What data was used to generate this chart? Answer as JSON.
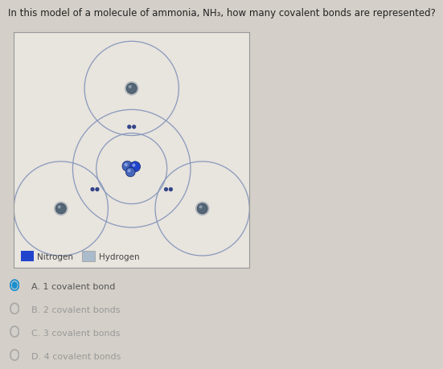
{
  "title": "In this model of a molecule of ammonia, NH₃, how many covalent bonds are represented?",
  "title_fontsize": 8.5,
  "bg_color": "#d4cfc8",
  "box_bg": "#e8e4de",
  "orbit_color": "#8899bb",
  "nitrogen_color_inner": "#2244cc",
  "nitrogen_color_outer": "#4466bb",
  "hydrogen_nucleus_color": "#556677",
  "legend_nitrogen": "#2244cc",
  "legend_hydrogen": "#aabbcc",
  "options": [
    {
      "label": "A. 1 covalent bond",
      "selected": true
    },
    {
      "label": "B. 2 covalent bonds",
      "selected": false
    },
    {
      "label": "C. 3 covalent bonds",
      "selected": false
    },
    {
      "label": "D. 4 covalent bonds",
      "selected": false
    }
  ],
  "selected_color": "#1a8fd0",
  "unselected_color": "#aaaaaa",
  "option_fontsize": 8.0,
  "option_text_color_selected": "#555555",
  "option_text_color": "#999999",
  "legend_text": [
    "Nitrogen",
    "Hydrogen"
  ],
  "legend_fontsize": 7.5,
  "electron_dot_color": "#334488"
}
